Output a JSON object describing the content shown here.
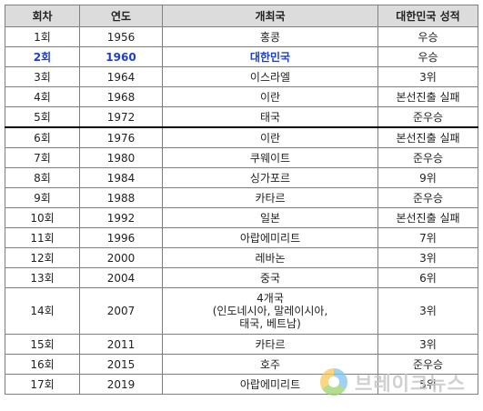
{
  "headers": [
    "회차",
    "연도",
    "개최국",
    "대한민국 성적"
  ],
  "rows": [
    {
      "round": "1회",
      "year": "1956",
      "host": "홍콩",
      "result": "우승"
    },
    {
      "round": "2회",
      "year": "1960",
      "host": "대한민국",
      "result": "우승"
    },
    {
      "round": "3회",
      "year": "1964",
      "host": "이스라엘",
      "result": "3위"
    },
    {
      "round": "4회",
      "year": "1968",
      "host": "이란",
      "result": "본선진출 실패"
    },
    {
      "round": "5회",
      "year": "1972",
      "host": "태국",
      "result": "준우승"
    },
    {
      "round": "6회",
      "year": "1976",
      "host": "이란",
      "result": "본선진출 실패"
    },
    {
      "round": "7회",
      "year": "1980",
      "host": "쿠웨이트",
      "result": "준우승"
    },
    {
      "round": "8회",
      "year": "1984",
      "host": "싱가포르",
      "result": "9위"
    },
    {
      "round": "9회",
      "year": "1988",
      "host": "카타르",
      "result": "준우승"
    },
    {
      "round": "10회",
      "year": "1992",
      "host": "일본",
      "result": "본선진출 실패"
    },
    {
      "round": "11회",
      "year": "1996",
      "host": "아랍에미리트",
      "result": "7위"
    },
    {
      "round": "12회",
      "year": "2000",
      "host": "레바논",
      "result": "3위"
    },
    {
      "round": "13회",
      "year": "2004",
      "host": "중국",
      "result": "6위"
    },
    {
      "round": "14회",
      "year": "2007",
      "host_lines": [
        "4개국",
        "(인도네시아, 말레이시아,",
        "태국, 베트남)"
      ],
      "result": "3위"
    },
    {
      "round": "15회",
      "year": "2011",
      "host": "카타르",
      "result": "3위"
    },
    {
      "round": "16회",
      "year": "2015",
      "host": "호주",
      "result": "준우승"
    },
    {
      "round": "17회",
      "year": "2019",
      "host": "아랍에미리트",
      "result": "5위"
    }
  ],
  "highlight_color": "#1f3ec7",
  "watermark": {
    "text": "브레이크뉴스",
    "logo_icon": "circular-logo-icon"
  }
}
